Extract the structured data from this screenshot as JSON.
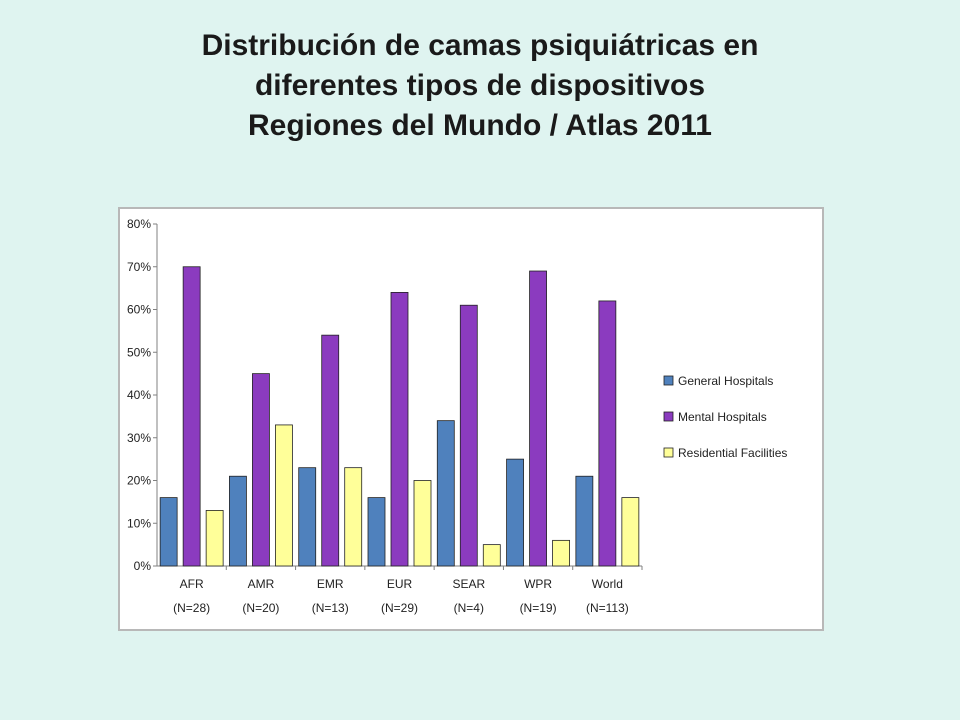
{
  "slide": {
    "title_line1": "Distribución de camas psiquiátricas en",
    "title_line2": "diferentes tipos de dispositivos",
    "title_line3": "Regiones del Mundo / Atlas 2011"
  },
  "chart_data": {
    "type": "bar",
    "title": "",
    "xlabel": "",
    "ylabel": "",
    "ylim": [
      0,
      80
    ],
    "yticks": [
      "0%",
      "10%",
      "20%",
      "30%",
      "40%",
      "50%",
      "60%",
      "70%",
      "80%"
    ],
    "categories": [
      "AFR",
      "AMR",
      "EMR",
      "EUR",
      "SEAR",
      "WPR",
      "World"
    ],
    "category_sublabels": [
      "(N=28)",
      "(N=20)",
      "(N=13)",
      "(N=29)",
      "(N=4)",
      "(N=19)",
      "(N=113)"
    ],
    "series": [
      {
        "name": "General Hospitals",
        "color": "#4f81bd",
        "values": [
          16,
          21,
          23,
          16,
          34,
          25,
          21
        ]
      },
      {
        "name": "Mental Hospitals",
        "color": "#8b3bbf",
        "values": [
          70,
          45,
          54,
          64,
          61,
          69,
          62
        ]
      },
      {
        "name": "Residential Facilities",
        "color": "#ffff99",
        "values": [
          13,
          33,
          23,
          20,
          5,
          6,
          16
        ]
      }
    ],
    "legend_position": "right",
    "grid": false
  }
}
